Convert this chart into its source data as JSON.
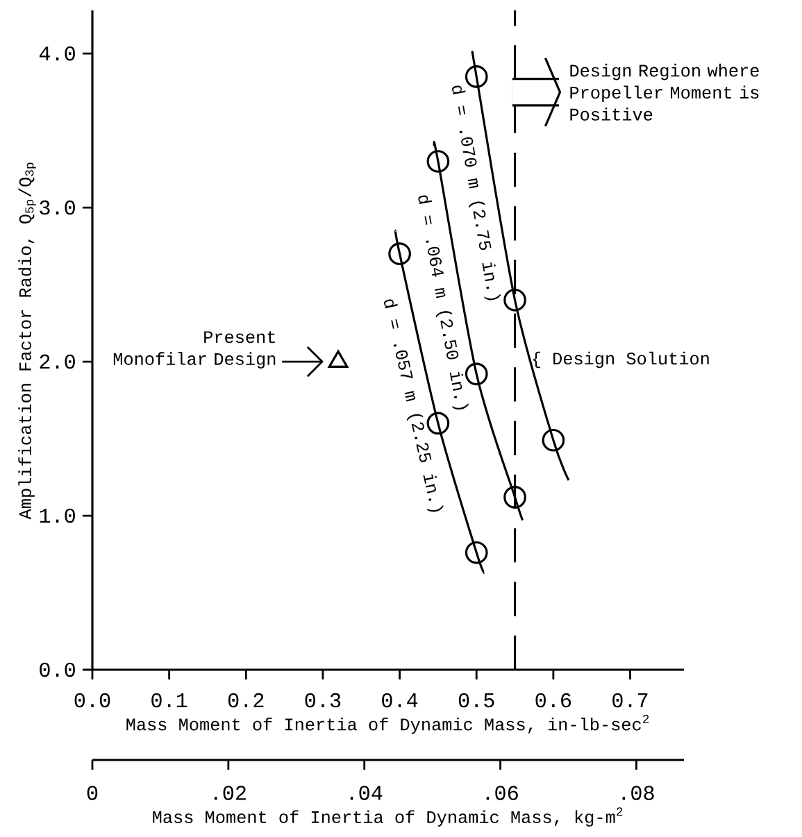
{
  "chart_data": {
    "type": "line",
    "xlabel": "Mass Moment of Inertia of Dynamic Mass, in-lb-sec$^{2}$",
    "ylabel": "Amplification Factor Radio, Q$_{5p}$/Q$_{3p}$",
    "x2label": "Mass Moment of Inertia of Dynamic Mass, kg-m$^{2}$",
    "xlim": [
      0,
      0.77
    ],
    "ylim": [
      0,
      4.28
    ],
    "xticks": [
      {
        "value": 0,
        "label": "0.0"
      },
      0.1,
      0.2,
      0.3,
      0.4,
      0.5,
      0.6,
      0.7
    ],
    "yticks": [
      {
        "value": 0,
        "label": "0.0"
      },
      {
        "value": 1,
        "label": "1.0"
      },
      {
        "value": 2,
        "label": "2.0"
      },
      {
        "value": 3,
        "label": "3.0"
      },
      {
        "value": 4,
        "label": "4.0"
      }
    ],
    "x2lim": [
      0,
      0.087
    ],
    "x2ticks": [
      0,
      {
        "value": 0.02,
        "label": ".02"
      },
      {
        "value": 0.04,
        "label": ".04"
      },
      {
        "value": 0.06,
        "label": ".06"
      },
      {
        "value": 0.08,
        "label": ".08"
      }
    ],
    "series": [
      {
        "type": "line",
        "name": "d = .057 m (2.25 in.)",
        "color": "#000000",
        "marker": "none",
        "x": [
          0.395,
          0.4,
          0.45,
          0.5,
          0.51
        ],
        "values": [
          2.85,
          2.7,
          1.6,
          0.76,
          0.63
        ]
      },
      {
        "type": "line",
        "name": "d = .064 m (2.50 in.)",
        "color": "#000000",
        "marker": "none",
        "x": [
          0.445,
          0.45,
          0.5,
          0.55,
          0.56
        ],
        "values": [
          3.4,
          3.3,
          1.92,
          1.12,
          0.97
        ]
      },
      {
        "type": "line",
        "name": "d = .070 m (2.75 in.)",
        "color": "#000000",
        "marker": "none",
        "x": [
          0.495,
          0.5,
          0.55,
          0.6,
          0.62
        ],
        "values": [
          4.0,
          3.85,
          2.4,
          1.49,
          1.23
        ]
      },
      {
        "type": "scatter",
        "color": "#000000",
        "marker": "circle",
        "x": [
          0.4,
          0.45,
          0.5,
          0.45,
          0.5,
          0.55,
          0.5,
          0.55,
          0.6
        ],
        "values": [
          2.7,
          1.6,
          0.76,
          3.3,
          1.92,
          1.12,
          3.85,
          2.4,
          1.49
        ]
      },
      {
        "type": "scatter",
        "color": "#000000",
        "marker": "triangle",
        "x": [
          0.32
        ],
        "values": [
          2.0
        ]
      }
    ],
    "ref_lines": [
      {
        "axis": "x",
        "value": 0.55,
        "label": "{ Design Solution",
        "line_style": "dashed",
        "color": "#000000"
      }
    ],
    "annotations": [
      "Design Region where Propeller Moment is Positive",
      "Present Monofilar Design"
    ]
  }
}
